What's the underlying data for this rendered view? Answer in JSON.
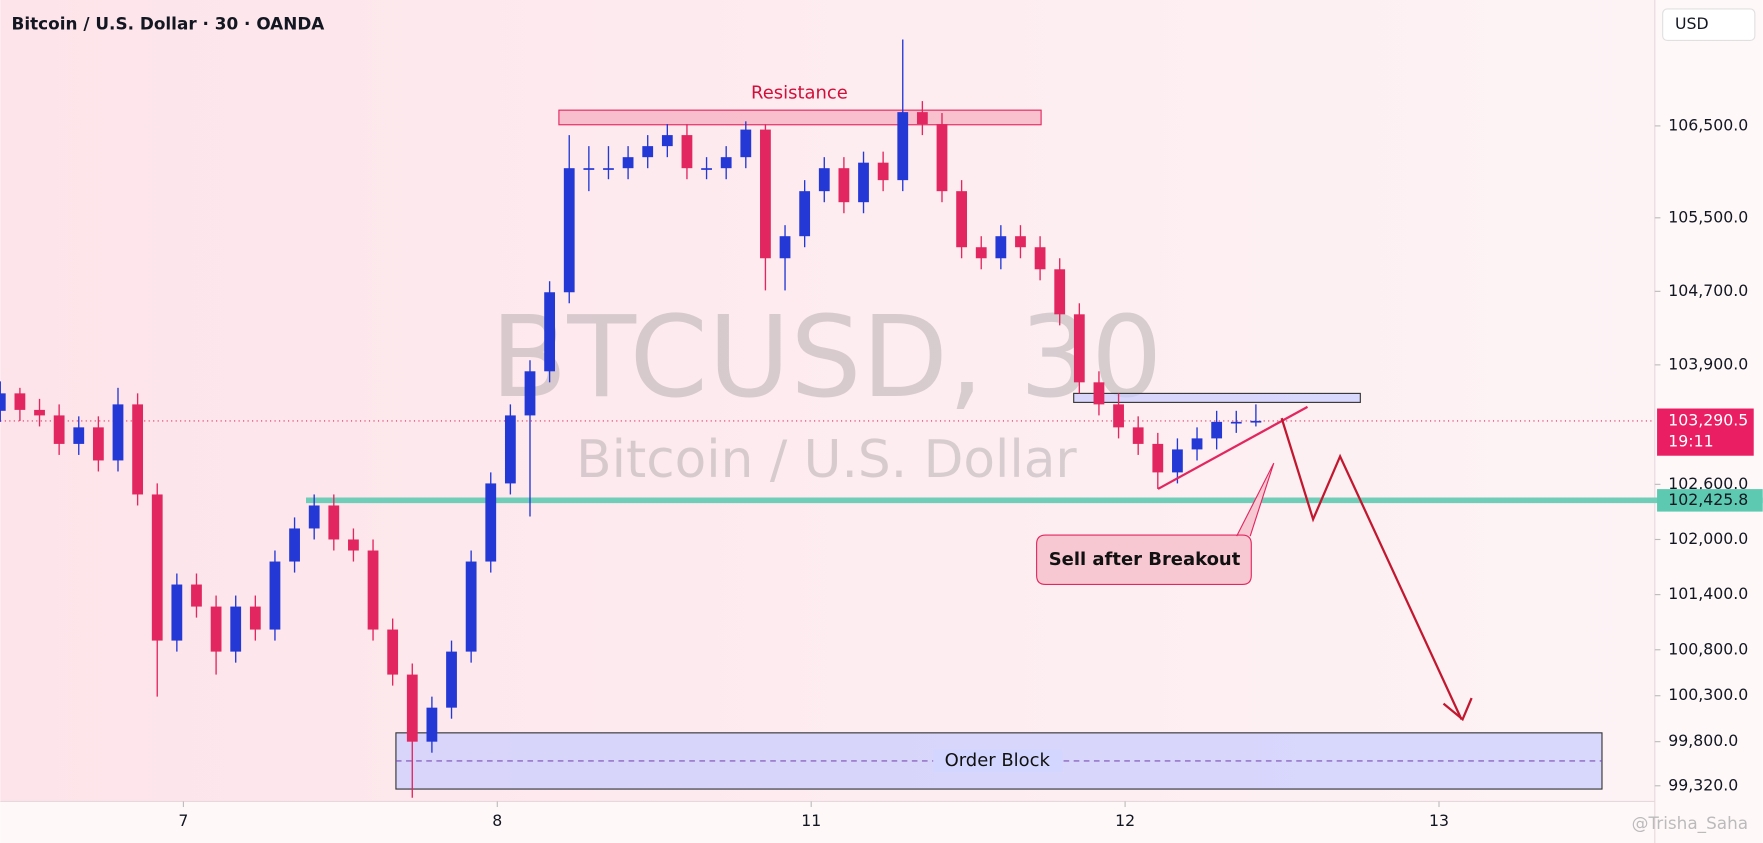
{
  "header": {
    "title": "Bitcoin / U.S. Dollar · 30 · OANDA",
    "currency": "USD"
  },
  "watermark": {
    "symbol": "BTCUSD, 30",
    "name": "Bitcoin / U.S. Dollar"
  },
  "credit": "@Trisha_Saha",
  "chart_data": {
    "type": "candlestick",
    "x": [
      0,
      3,
      6,
      9,
      12,
      15,
      18,
      21,
      24,
      27,
      30,
      33,
      36,
      39,
      42,
      45,
      48,
      51,
      54,
      57,
      60,
      63,
      66,
      69,
      72,
      75,
      78,
      81,
      84,
      87,
      90,
      93,
      96,
      99,
      102,
      105,
      108,
      111,
      114,
      117,
      120,
      123,
      126,
      129,
      132,
      135,
      138,
      141,
      144,
      147,
      150,
      153,
      156,
      159,
      162,
      165,
      168,
      171,
      174,
      177,
      180,
      183,
      186,
      189,
      192
    ],
    "open": [
      103400,
      103590,
      103410,
      103350,
      103040,
      103220,
      102860,
      103470,
      102490,
      100900,
      101510,
      101270,
      100780,
      101270,
      101020,
      101760,
      102120,
      102370,
      102000,
      101880,
      101020,
      100530,
      99800,
      100170,
      100780,
      101760,
      102610,
      103350,
      103830,
      104690,
      106040,
      106040,
      106040,
      106160,
      106280,
      106400,
      106040,
      106040,
      106160,
      106460,
      105060,
      105300,
      105790,
      106040,
      105670,
      106100,
      105910,
      106650,
      106520,
      105790,
      105180,
      105060,
      105300,
      105180,
      104940,
      104450,
      103710,
      103470,
      103220,
      103040,
      102730,
      102980,
      103100,
      103280,
      103280
    ],
    "high": [
      103720,
      103650,
      103530,
      103470,
      103340,
      103340,
      103650,
      103590,
      102610,
      101630,
      101630,
      101390,
      101390,
      101390,
      101880,
      102240,
      102490,
      102490,
      102120,
      102000,
      101140,
      100650,
      100290,
      100900,
      101880,
      102730,
      103470,
      103950,
      104810,
      106400,
      106280,
      106280,
      106280,
      106400,
      106520,
      106520,
      106160,
      106280,
      106550,
      106520,
      105420,
      105910,
      106160,
      106160,
      106220,
      106220,
      107440,
      106770,
      106640,
      105910,
      105300,
      105420,
      105420,
      105300,
      105060,
      104570,
      103830,
      103590,
      103340,
      103160,
      103100,
      103220,
      103400,
      103400,
      103470
    ],
    "low": [
      103280,
      103290,
      103230,
      102920,
      102920,
      102740,
      102740,
      102370,
      100290,
      100780,
      101150,
      100530,
      100660,
      100900,
      100900,
      101640,
      102000,
      101880,
      101760,
      100900,
      100410,
      99190,
      99680,
      100050,
      100660,
      101640,
      102490,
      102250,
      103710,
      104570,
      105790,
      105920,
      105920,
      106040,
      106160,
      105920,
      105920,
      105920,
      106040,
      104710,
      104710,
      105180,
      105670,
      105550,
      105550,
      105790,
      105790,
      106400,
      105670,
      105060,
      104940,
      104940,
      105060,
      104820,
      104330,
      103590,
      103350,
      103100,
      102920,
      102550,
      102610,
      102860,
      102980,
      103160,
      103230
    ],
    "close": [
      103590,
      103410,
      103350,
      103040,
      103220,
      102860,
      103470,
      102490,
      100900,
      101510,
      101270,
      100780,
      101270,
      101020,
      101760,
      102120,
      102370,
      102000,
      101880,
      101020,
      100530,
      99800,
      100170,
      100780,
      101760,
      102610,
      103350,
      103830,
      104690,
      106040,
      106040,
      106040,
      106160,
      106280,
      106400,
      106040,
      106040,
      106160,
      106460,
      105060,
      105300,
      105790,
      106040,
      105670,
      106100,
      105910,
      106650,
      106520,
      105790,
      105180,
      105060,
      105300,
      105180,
      104940,
      104450,
      103710,
      103470,
      103220,
      103040,
      102730,
      102980,
      103100,
      103280,
      103280,
      103290.5
    ],
    "up_color": "#2438d6",
    "down_color": "#e2265f",
    "xlim": [
      0,
      253
    ],
    "xticks": [
      {
        "value": 28,
        "label": "7"
      },
      {
        "value": 76,
        "label": "8"
      },
      {
        "value": 124,
        "label": "11"
      },
      {
        "value": 172,
        "label": "12"
      },
      {
        "value": 220,
        "label": "13"
      }
    ],
    "ylim": [
      99150,
      107870
    ],
    "yticks": [
      {
        "value": 106500,
        "label": "106,500.0"
      },
      {
        "value": 105500,
        "label": "105,500.0"
      },
      {
        "value": 104700,
        "label": "104,700.0"
      },
      {
        "value": 103900,
        "label": "103,900.0"
      },
      {
        "value": 102600,
        "label": "102,600.0"
      },
      {
        "value": 102000,
        "label": "102,000.0"
      },
      {
        "value": 101400,
        "label": "101,400.0"
      },
      {
        "value": 100800,
        "label": "100,800.0"
      },
      {
        "value": 100300,
        "label": "100,300.0"
      },
      {
        "value": 99800,
        "label": "99,800.0"
      },
      {
        "value": 99320,
        "label": "99,320.0"
      }
    ],
    "last_price": {
      "value": 103290.5,
      "label": "103,290.5"
    },
    "countdown": "19:11",
    "level": {
      "value": 102425.8,
      "label": "102,425.8"
    },
    "annotations": [
      "Resistance",
      "Sell after Breakout",
      "Order Block"
    ]
  }
}
